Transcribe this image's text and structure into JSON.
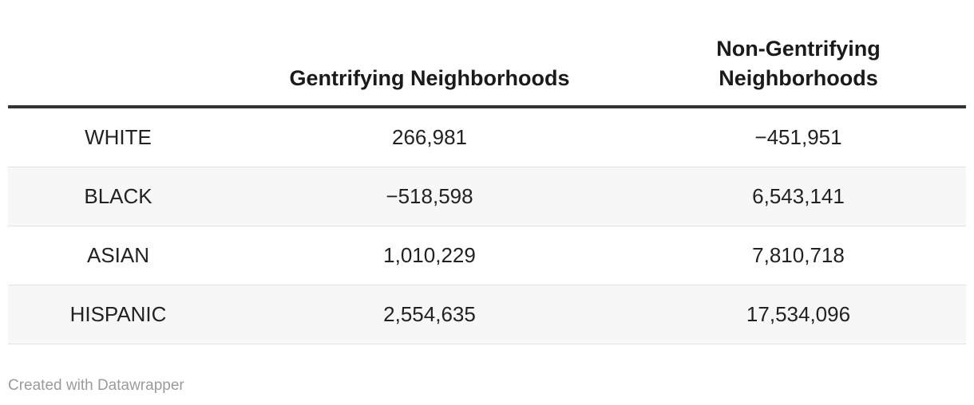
{
  "table": {
    "columns": [
      "",
      "Gentrifying Neighborhoods",
      "Non-Gentrifying Neighborhoods"
    ],
    "rows": [
      [
        "WHITE",
        "266,981",
        "−451,951"
      ],
      [
        "BLACK",
        "−518,598",
        "6,543,141"
      ],
      [
        "ASIAN",
        "1,010,229",
        "7,810,718"
      ],
      [
        "HISPANIC",
        "2,554,635",
        "17,534,096"
      ]
    ]
  },
  "footer": {
    "credit": "Created with Datawrapper"
  },
  "colors": {
    "header_rule": "#333333",
    "row_stripe": "#f7f7f7",
    "row_separator": "#e3e3e3",
    "text": "#222222",
    "header_text": "#1a1a1a",
    "credit_text": "#9b9b9b",
    "background": "#ffffff"
  },
  "chart_data": {
    "type": "table",
    "categories": [
      "WHITE",
      "BLACK",
      "ASIAN",
      "HISPANIC"
    ],
    "series": [
      {
        "name": "Gentrifying Neighborhoods",
        "values": [
          266981,
          -518598,
          1010229,
          2554635
        ]
      },
      {
        "name": "Non-Gentrifying Neighborhoods",
        "values": [
          -451951,
          6543141,
          7810718,
          17534096
        ]
      }
    ],
    "title": "",
    "notes": "Population change table by race for gentrifying vs non-gentrifying neighborhoods; zebra-striped rows; credit line 'Created with Datawrapper'"
  }
}
